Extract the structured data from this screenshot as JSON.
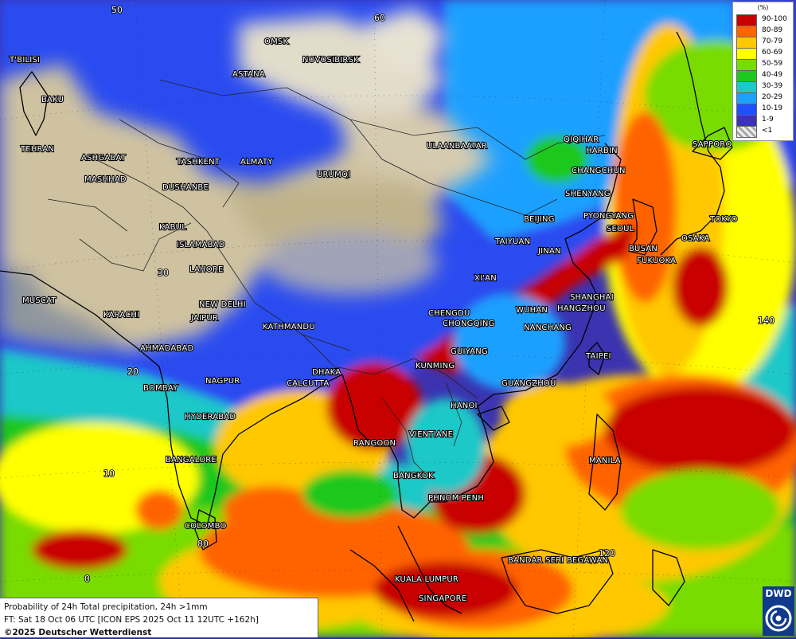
{
  "map": {
    "grid_labels": [
      {
        "text": "50"
      },
      {
        "text": "60"
      },
      {
        "text": "30"
      },
      {
        "text": "20"
      },
      {
        "text": "10"
      },
      {
        "text": "0"
      },
      {
        "text": "80"
      },
      {
        "text": "120"
      },
      {
        "text": "140"
      }
    ],
    "cities": [
      "T'BILISI",
      "BAKU",
      "OMSK",
      "NOVOSIBIRSK",
      "ASTANA",
      "TEHRAN",
      "ASHGABAT",
      "MASHHAD",
      "TASHKENT",
      "ALMATY",
      "URUMQI",
      "DUSHANBE",
      "ULAANBAATAR",
      "QIQIHAR",
      "HARBIN",
      "CHANGCHUN",
      "SAPPORO",
      "SHENYANG",
      "BEIJING",
      "PYONGYANG",
      "SEOUL",
      "TOKYO",
      "KABUL",
      "ISLAMABAD",
      "TAIYUAN",
      "JINAN",
      "BUSAN",
      "OSAKA",
      "FUKUOKA",
      "LAHORE",
      "XI'AN",
      "MUSCAT",
      "NEW DELHI",
      "SHANGHAI",
      "WUHAN",
      "HANGZHOU",
      "KARACHI",
      "JAIPUR",
      "CHENGDU",
      "CHONGQING",
      "NANCHANG",
      "KATHMANDU",
      "AHMADABAD",
      "GUIYANG",
      "TAIPEI",
      "KUNMING",
      "DHAKA",
      "NAGPUR",
      "CALCUTTA",
      "BOMBAY",
      "GUANGZHOU",
      "HANOI",
      "HYDERABAD",
      "VIENTIANE",
      "RANGOON",
      "MANILA",
      "BANGALORE",
      "BANGKOK",
      "PHNOM PENH",
      "COLOMBO",
      "BANDAR SERI BEGAWAN",
      "KUALA LUMPUR",
      "SINGAPORE"
    ]
  },
  "legend": {
    "unit": "(%)",
    "classes": [
      {
        "label": "90-100",
        "color": "#c80000"
      },
      {
        "label": "80-89",
        "color": "#ff6400"
      },
      {
        "label": "70-79",
        "color": "#ffc800"
      },
      {
        "label": "60-69",
        "color": "#ffff00"
      },
      {
        "label": "50-59",
        "color": "#78dc00"
      },
      {
        "label": "40-49",
        "color": "#1ec81e"
      },
      {
        "label": "30-39",
        "color": "#1ec8c8"
      },
      {
        "label": "20-29",
        "color": "#1ea0ff"
      },
      {
        "label": "10-19",
        "color": "#1e50ff"
      },
      {
        "label": "1-9",
        "color": "#3c32b4"
      },
      {
        "label": "<1",
        "color": "#bbbbbb"
      }
    ]
  },
  "info": {
    "line1": "Probability of 24h Total precipitation, 24h >1mm",
    "line2": "FT: Sat 18 Oct 06 UTC [ICON EPS 2025 Oct 11 12UTC +162h]",
    "copyright": "©2025 Deutscher Wetterdienst"
  },
  "logo": {
    "text": "DWD"
  }
}
